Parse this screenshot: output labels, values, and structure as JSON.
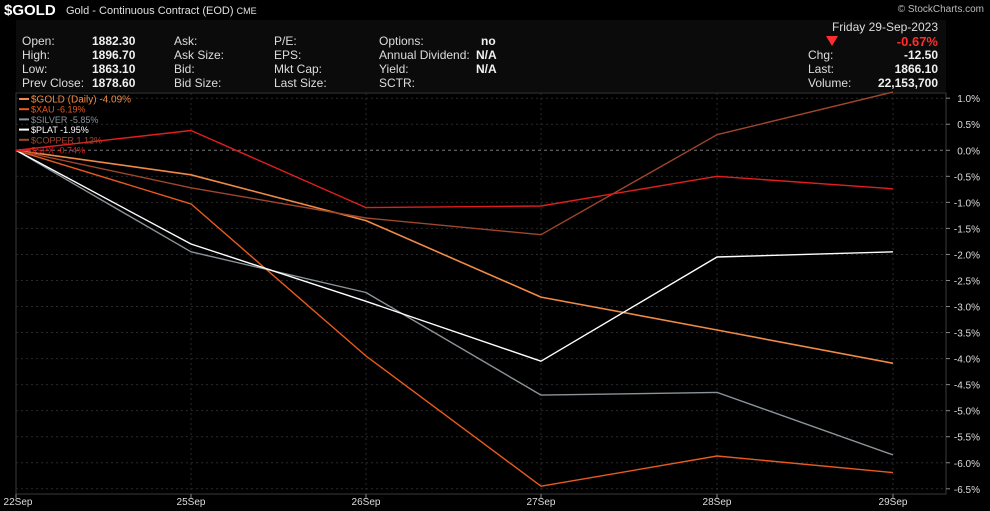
{
  "header": {
    "symbol": "$GOLD",
    "description": "Gold - Continuous Contract (EOD)",
    "exchange": "CME",
    "brand": "© StockCharts.com"
  },
  "quote": {
    "col1": [
      {
        "label": "Open:",
        "value": "1882.30"
      },
      {
        "label": "High:",
        "value": "1896.70"
      },
      {
        "label": "Low:",
        "value": "1863.10"
      },
      {
        "label": "Prev Close:",
        "value": "1878.60"
      }
    ],
    "col2": [
      "Ask:",
      "Ask Size:",
      "Bid:",
      "Bid Size:"
    ],
    "col3": [
      "P/E:",
      "EPS:",
      "Mkt Cap:",
      "Last Size:"
    ],
    "col4": [
      {
        "label": "Options:",
        "value": "no"
      },
      {
        "label": "Annual Dividend:",
        "value": "N/A"
      },
      {
        "label": "Yield:",
        "value": "N/A"
      },
      {
        "label": "SCTR:",
        "value": ""
      }
    ],
    "date": "Friday  29-Sep-2023",
    "change_pct": "-0.67%",
    "col5": [
      {
        "label": "Chg:",
        "value": "-12.50"
      },
      {
        "label": "Last:",
        "value": "1866.10"
      },
      {
        "label": "Volume:",
        "value": "22,153,700"
      }
    ]
  },
  "chart_data": {
    "type": "line",
    "x": [
      "22Sep",
      "25Sep",
      "26Sep",
      "27Sep",
      "28Sep",
      "29Sep"
    ],
    "ylim": [
      -6.6,
      1.1
    ],
    "yticks": [
      1.0,
      0.5,
      0.0,
      -0.5,
      -1.0,
      -1.5,
      -2.0,
      -2.5,
      -3.0,
      -3.5,
      -4.0,
      -4.5,
      -5.0,
      -5.5,
      -6.0,
      -6.5
    ],
    "ytick_labels": [
      "1.0%",
      "0.5%",
      "0.0%",
      "-0.5%",
      "-1.0%",
      "-1.5%",
      "-2.0%",
      "-2.5%",
      "-3.0%",
      "-3.5%",
      "-4.0%",
      "-4.5%",
      "-5.0%",
      "-5.5%",
      "-6.0%",
      "-6.5%"
    ],
    "grid": true,
    "zero_line": true,
    "legend_position": "top-left",
    "series": [
      {
        "name": "$GOLD (Daily)",
        "label": "$GOLD (Daily) -4.09%",
        "color": "#f08a46",
        "values": [
          0,
          -0.47,
          -1.35,
          -2.82,
          -3.45,
          -4.09
        ]
      },
      {
        "name": "$XAU",
        "label": "$XAU -6.19%",
        "color": "#e85a1e",
        "values": [
          0,
          -1.03,
          -3.95,
          -6.45,
          -5.87,
          -6.19
        ]
      },
      {
        "name": "$SILVER",
        "label": "$SILVER -5.85%",
        "color": "#8a9499",
        "values": [
          0,
          -1.95,
          -2.73,
          -4.7,
          -4.65,
          -5.85
        ]
      },
      {
        "name": "$PLAT",
        "label": "$PLAT -1.95%",
        "color": "#ffffff",
        "values": [
          0,
          -1.8,
          -2.9,
          -4.05,
          -2.05,
          -1.95
        ]
      },
      {
        "name": "$COPPER",
        "label": "$COPPER 1.12%",
        "color": "#a0462c",
        "values": [
          0,
          -0.72,
          -1.3,
          -1.62,
          0.3,
          1.12
        ]
      },
      {
        "name": "$SPX",
        "label": "$SPX -0.74%",
        "color": "#e01e1e",
        "values": [
          0,
          0.38,
          -1.1,
          -1.07,
          -0.5,
          -0.74
        ]
      }
    ]
  }
}
